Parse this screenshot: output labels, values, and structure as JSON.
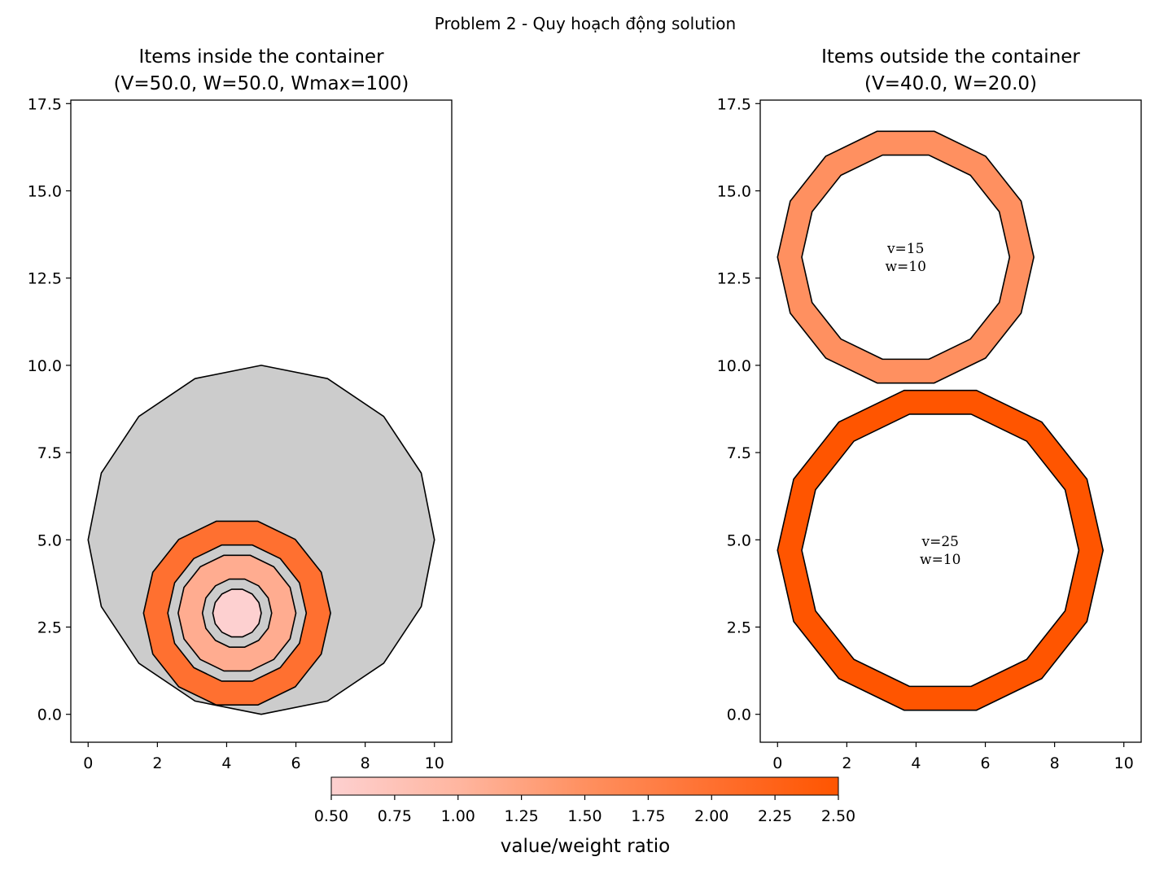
{
  "figure": {
    "suptitle": "Problem 2 - Quy hoạch động solution"
  },
  "colorbar": {
    "label": "value/weight ratio",
    "range": [
      0.5,
      2.5
    ],
    "ticks": [
      "0.50",
      "0.75",
      "1.00",
      "1.25",
      "1.50",
      "1.75",
      "2.00",
      "2.25",
      "2.50"
    ],
    "colors": [
      "#fdd0d0",
      "#ffb6a0",
      "#ff9060",
      "#ff7030",
      "#ff5500"
    ]
  },
  "chart_data": [
    {
      "type": "polygon",
      "title_line1": "Items inside the container",
      "title_line2": "(V=50.0, W=50.0, Wmax=100)",
      "xlim": [
        -0.5,
        10.5
      ],
      "ylim": [
        -0.8,
        17.6
      ],
      "xticks": [
        "0",
        "2",
        "4",
        "6",
        "8",
        "10"
      ],
      "yticks": [
        "0.0",
        "2.5",
        "5.0",
        "7.5",
        "10.0",
        "12.5",
        "15.0",
        "17.5"
      ],
      "xtick_values": [
        0,
        2,
        4,
        6,
        8,
        10
      ],
      "ytick_values": [
        0,
        2.5,
        5,
        7.5,
        10,
        12.5,
        15,
        17.5
      ],
      "shapes": [
        {
          "name": "container",
          "cx": 5.0,
          "cy": 5.0,
          "r_outer": 5.0,
          "r_inner": 0,
          "sides": 16,
          "fill": "#cccccc"
        },
        {
          "name": "ring-orange",
          "cx": 4.3,
          "cy": 2.9,
          "r_outer": 2.7,
          "r_inner": 2.0,
          "sides": 14,
          "fill": "#ff7030"
        },
        {
          "name": "ring-salmon",
          "cx": 4.3,
          "cy": 2.9,
          "r_outer": 1.7,
          "r_inner": 1.0,
          "sides": 14,
          "fill": "#ffac90"
        },
        {
          "name": "disc-pink",
          "cx": 4.3,
          "cy": 2.9,
          "r_outer": 0.7,
          "r_inner": 0,
          "sides": 14,
          "fill": "#fdd0d0"
        }
      ],
      "items": []
    },
    {
      "type": "polygon",
      "title_line1": "Items outside the container",
      "title_line2": "(V=40.0, W=20.0)",
      "xlim": [
        -0.5,
        10.5
      ],
      "ylim": [
        -0.8,
        17.6
      ],
      "xticks": [
        "0",
        "2",
        "4",
        "6",
        "8",
        "10"
      ],
      "yticks": [
        "0.0",
        "2.5",
        "5.0",
        "7.5",
        "10.0",
        "12.5",
        "15.0",
        "17.5"
      ],
      "xtick_values": [
        0,
        2,
        4,
        6,
        8,
        10
      ],
      "ytick_values": [
        0,
        2.5,
        5,
        7.5,
        10,
        12.5,
        15,
        17.5
      ],
      "shapes": [
        {
          "name": "ring-item-1",
          "cx": 3.7,
          "cy": 13.1,
          "r_outer": 3.7,
          "r_inner": 3.0,
          "sides": 14,
          "fill": "#ff9060"
        },
        {
          "name": "ring-item-2",
          "cx": 4.7,
          "cy": 4.7,
          "r_outer": 4.7,
          "r_inner": 4.0,
          "sides": 14,
          "fill": "#ff5500"
        }
      ],
      "items": [
        {
          "v": "v=15",
          "w": "w=10",
          "x": 3.7,
          "y": 13.1
        },
        {
          "v": "v=25",
          "w": "w=10",
          "x": 4.7,
          "y": 4.7
        }
      ]
    }
  ]
}
